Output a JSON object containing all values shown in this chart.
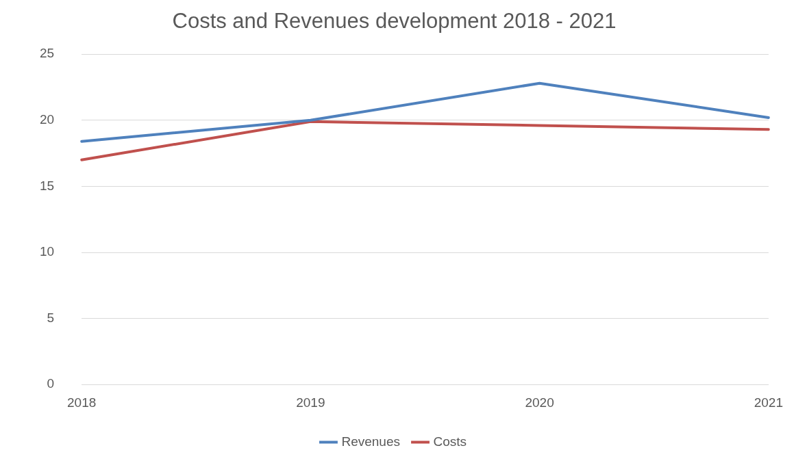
{
  "chart_data": {
    "type": "line",
    "title": "Costs and Revenues development 2018 - 2021",
    "categories": [
      "2018",
      "2019",
      "2020",
      "2021"
    ],
    "series": [
      {
        "name": "Revenues",
        "color": "#4f81bd",
        "values": [
          18.4,
          20.0,
          22.8,
          20.2
        ]
      },
      {
        "name": "Costs",
        "color": "#c0504d",
        "values": [
          17.0,
          19.9,
          19.6,
          19.3
        ]
      }
    ],
    "ylim": [
      0,
      25
    ],
    "yticks": [
      0,
      5,
      10,
      15,
      20,
      25
    ],
    "grid": "y",
    "legend": "bottom",
    "marker": "none",
    "line_style": "solid"
  }
}
